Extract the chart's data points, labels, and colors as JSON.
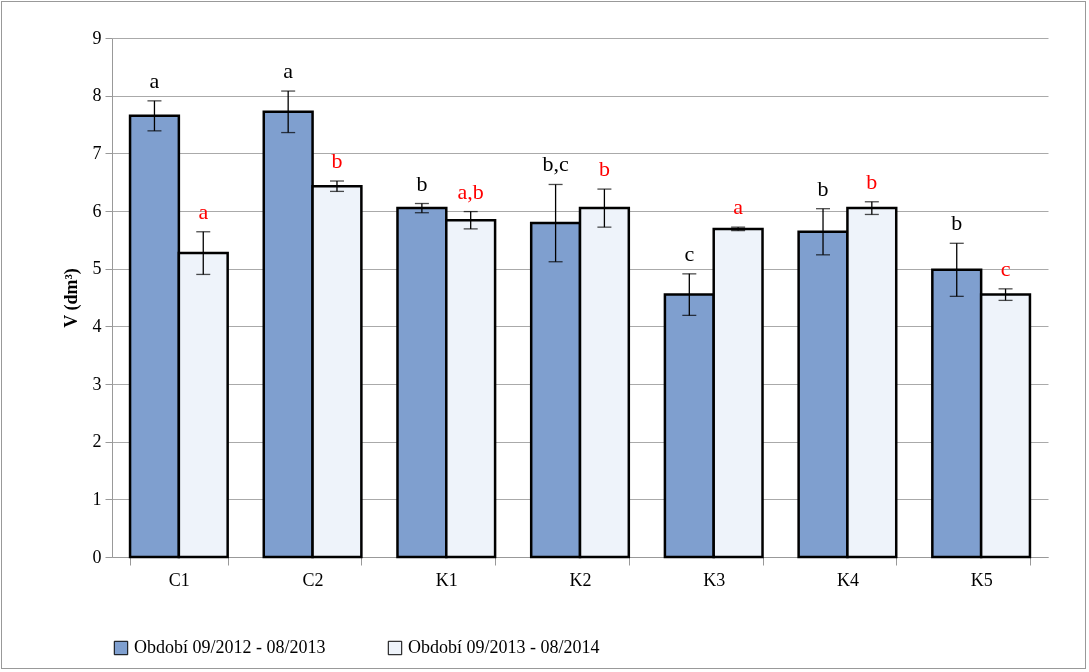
{
  "chart_data": {
    "type": "bar",
    "ylabel": "V (dm³)",
    "categories": [
      "C1",
      "C2",
      "K1",
      "K2",
      "K3",
      "K4",
      "K5"
    ],
    "series": [
      {
        "name": "Období 09/2012 - 08/2013",
        "color": "#7f9fcf",
        "values": [
          7.65,
          7.72,
          6.05,
          5.79,
          4.55,
          5.64,
          4.98
        ],
        "errors": [
          0.26,
          0.36,
          0.08,
          0.67,
          0.36,
          0.4,
          0.46
        ],
        "value_labels": [
          "a",
          "a",
          "b",
          "b,c",
          "c",
          "b",
          "b"
        ]
      },
      {
        "name": "Období 09/2013 - 08/2014",
        "color": "#eef3fa",
        "values": [
          5.27,
          6.43,
          5.84,
          6.05,
          5.69,
          6.05,
          4.55
        ],
        "errors": [
          0.37,
          0.09,
          0.15,
          0.33,
          0.03,
          0.11,
          0.1
        ],
        "value_labels": [
          "a",
          "b",
          "a,b",
          "b",
          "a",
          "b",
          "c"
        ]
      }
    ],
    "ylim": [
      0,
      9
    ],
    "yticks": [
      0,
      1,
      2,
      3,
      4,
      5,
      6,
      7,
      8,
      9
    ],
    "grid": "y",
    "legend": "bottom"
  }
}
